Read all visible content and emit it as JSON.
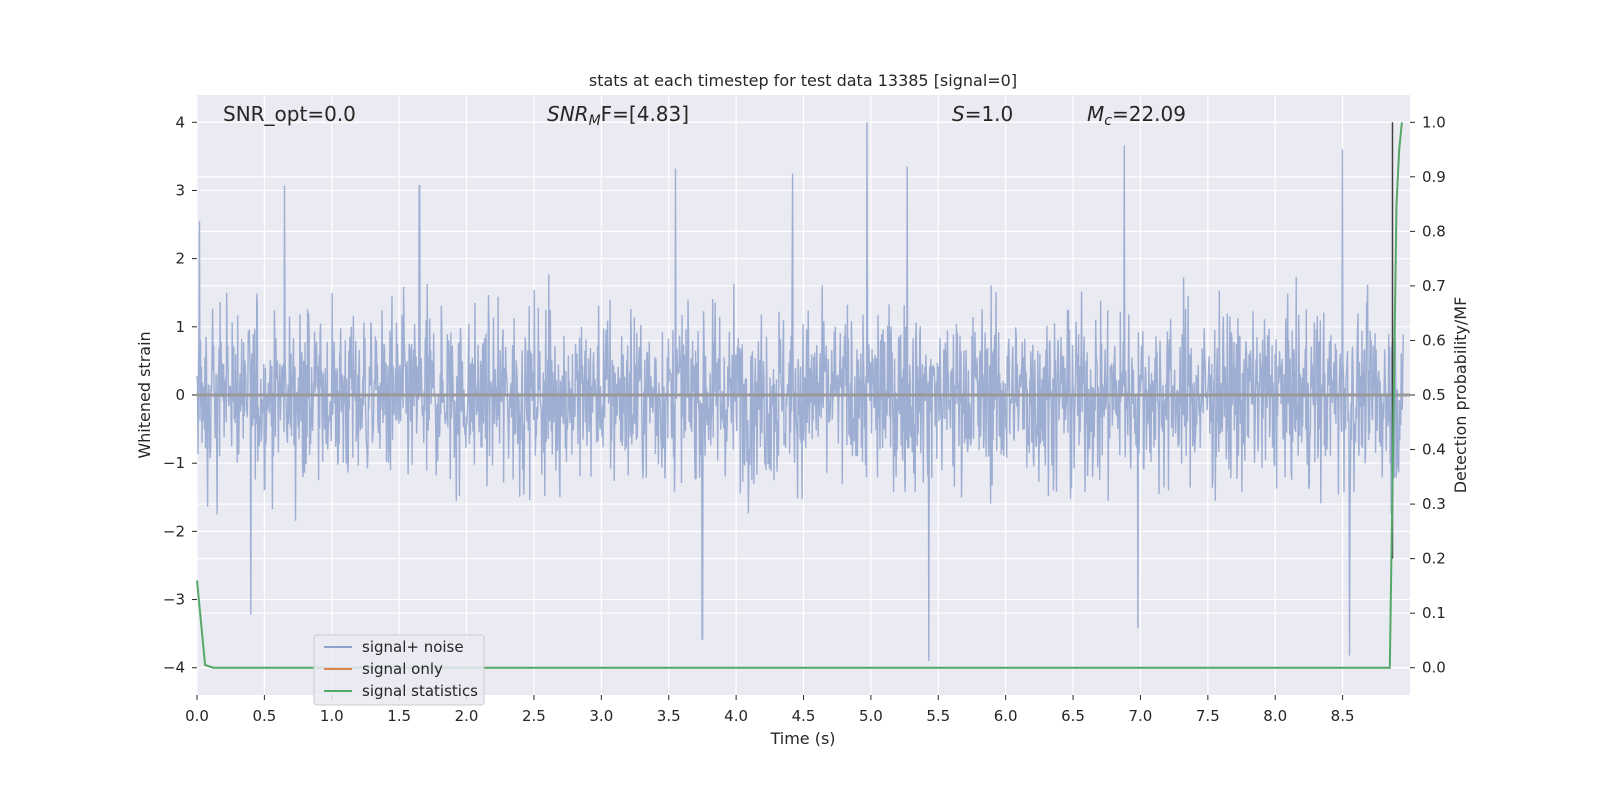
{
  "chart_data": {
    "type": "line",
    "title": "stats at each timestep for test data 13385 [signal=0]",
    "xlabel": "Time (s)",
    "ylabel": "Whitened strain",
    "ylabel_right": "Detection probability/MF",
    "xlim": [
      0.0,
      9.0
    ],
    "ylim": [
      -4.4,
      4.4
    ],
    "ylim_right": [
      -0.05,
      1.05
    ],
    "x_ticks": [
      "0.0",
      "0.5",
      "1.0",
      "1.5",
      "2.0",
      "2.5",
      "3.0",
      "3.5",
      "4.0",
      "4.5",
      "5.0",
      "5.5",
      "6.0",
      "6.5",
      "7.0",
      "7.5",
      "8.0",
      "8.5"
    ],
    "y_ticks": [
      "4",
      "3",
      "2",
      "1",
      "0",
      "−1",
      "−2",
      "−3",
      "−4"
    ],
    "y_ticks_right": [
      "1.0",
      "0.9",
      "0.8",
      "0.7",
      "0.6",
      "0.5",
      "0.4",
      "0.3",
      "0.2",
      "0.1",
      "0.0"
    ],
    "grid": true,
    "legend_position": "lower-left",
    "annotations": {
      "snr_opt": "SNR_opt=0.0",
      "snr_mf_a": "SNR",
      "snr_mf_b": "M",
      "snr_mf_c": "F=[4.83]",
      "s_a": "S",
      "s_b": "=1.0",
      "mc_a": "M",
      "mc_b": "c",
      "mc_c": "=22.09"
    },
    "series": [
      {
        "name": "signal+ noise",
        "color": "#8fa3cc",
        "axis": "left",
        "description_range": [
          -3.9,
          4.0
        ],
        "peaks": [
          {
            "x": 0.02,
            "y": 2.55
          },
          {
            "x": 0.4,
            "y": -3.22
          },
          {
            "x": 0.65,
            "y": 3.07
          },
          {
            "x": 1.65,
            "y": 3.07
          },
          {
            "x": 3.55,
            "y": 3.32
          },
          {
            "x": 3.75,
            "y": -3.58
          },
          {
            "x": 4.42,
            "y": 3.25
          },
          {
            "x": 4.97,
            "y": 4.0
          },
          {
            "x": 5.27,
            "y": 3.35
          },
          {
            "x": 5.43,
            "y": -3.9
          },
          {
            "x": 6.88,
            "y": 3.66
          },
          {
            "x": 6.98,
            "y": -3.42
          },
          {
            "x": 8.5,
            "y": 3.6
          },
          {
            "x": 8.55,
            "y": -3.82
          }
        ]
      },
      {
        "name": "signal only",
        "color": "#dd8452",
        "axis": "left",
        "x": [
          0.0,
          9.0
        ],
        "y": [
          0.0,
          0.0
        ]
      },
      {
        "name": "signal statistics",
        "color": "#55a868",
        "axis": "right",
        "x": [
          0.0,
          0.06,
          0.12,
          0.5,
          1.0,
          2.0,
          3.0,
          4.0,
          5.0,
          6.0,
          7.0,
          8.0,
          8.5,
          8.85,
          8.88,
          8.9,
          8.92,
          8.94
        ],
        "y": [
          0.16,
          0.005,
          0.0,
          0.0,
          0.0,
          0.0,
          0.0,
          0.0,
          0.0,
          0.0,
          0.0,
          0.0,
          0.0,
          0.0,
          0.5,
          0.85,
          0.95,
          1.0
        ]
      }
    ],
    "vline": {
      "x": 8.87,
      "color": "#404040"
    }
  }
}
